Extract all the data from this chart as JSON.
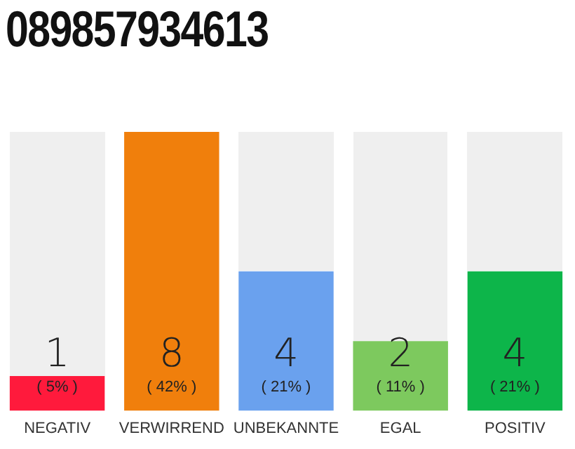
{
  "chart_data": {
    "type": "bar",
    "title": "089857934613",
    "categories": [
      "NEGATIV",
      "VERWIRREND",
      "UNBEKANNTE",
      "EGAL",
      "POSITIV"
    ],
    "values": [
      1,
      8,
      4,
      2,
      4
    ],
    "colors": [
      "#ff1a3c",
      "#f07f0c",
      "#6aa1ee",
      "#7dc95e",
      "#0db54a"
    ],
    "ylim": [
      0,
      8
    ],
    "tick_labels": "x",
    "data_labels": true,
    "annotations": [
      "( 5% )",
      "( 42% )",
      "( 21% )",
      "( 11% )",
      "( 21% )"
    ],
    "grid": false,
    "legend": false
  }
}
